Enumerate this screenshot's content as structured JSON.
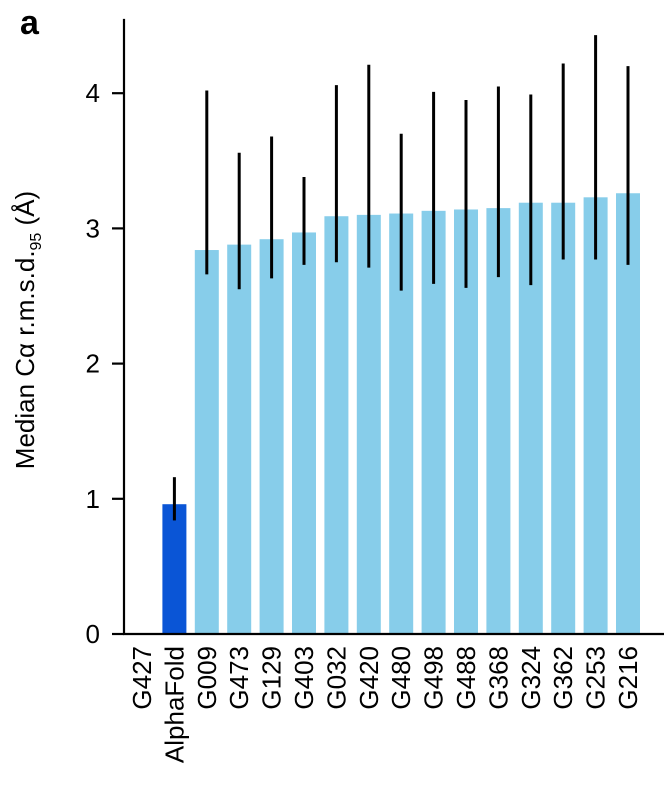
{
  "panel_label": "a",
  "colors": {
    "alphafold_bar": "#0a55d6",
    "other_bars": "#87cdea",
    "axis": "#000000"
  },
  "chart_data": {
    "type": "bar",
    "title": "",
    "xlabel": "",
    "ylabel": "Median Cα r.m.s.d.",
    "ylabel_subscript": "95",
    "ylabel_unit": " (Å)",
    "ylim": [
      0,
      4.55
    ],
    "yticks": [
      0,
      1,
      2,
      3,
      4
    ],
    "grid": false,
    "legend": "none",
    "categories": [
      "G427",
      "AlphaFold",
      "G009",
      "G473",
      "G129",
      "G403",
      "G032",
      "G420",
      "G480",
      "G498",
      "G488",
      "G368",
      "G324",
      "G362",
      "G253",
      "G216"
    ],
    "values": [
      null,
      0.96,
      2.84,
      2.88,
      2.92,
      2.97,
      3.09,
      3.1,
      3.11,
      3.13,
      3.14,
      3.15,
      3.19,
      3.19,
      3.23,
      3.26
    ],
    "error_low": [
      null,
      0.84,
      2.66,
      2.55,
      2.63,
      2.73,
      2.75,
      2.71,
      2.54,
      2.59,
      2.56,
      2.64,
      2.58,
      2.77,
      2.77,
      2.73
    ],
    "error_high": [
      null,
      1.16,
      4.02,
      3.56,
      3.68,
      3.38,
      4.06,
      4.21,
      3.7,
      4.01,
      3.95,
      4.05,
      3.99,
      4.22,
      4.43,
      4.2
    ]
  }
}
